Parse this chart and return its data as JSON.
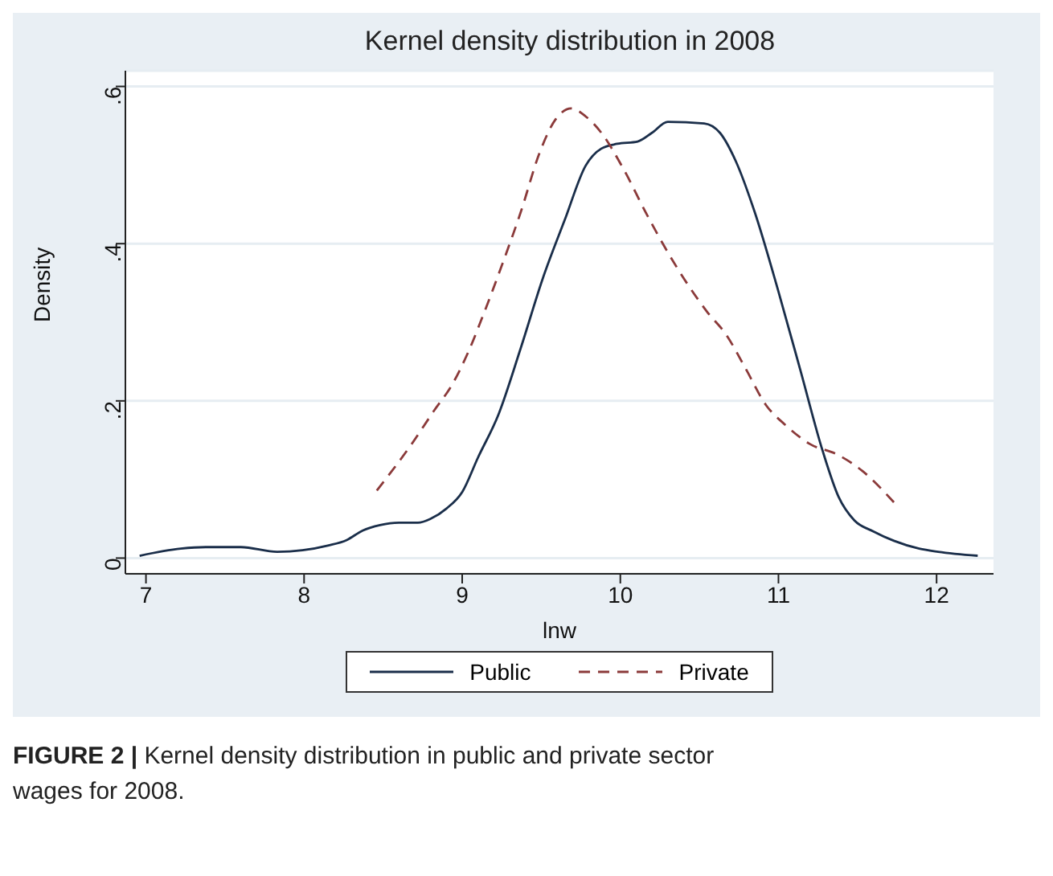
{
  "chart_data": {
    "type": "line",
    "title": "Kernel density distribution in 2008",
    "xlabel": "lnw",
    "ylabel": "Density",
    "xlim": [
      6.87,
      12.36
    ],
    "xticks": [
      7,
      8,
      9,
      10,
      11,
      12
    ],
    "ylim": [
      -0.02,
      0.62
    ],
    "yticks": [
      {
        "value": 0,
        "label": "0"
      },
      {
        "value": 0.2,
        "label": ".2"
      },
      {
        "value": 0.4,
        "label": ".4"
      },
      {
        "value": 0.6,
        "label": ".6"
      }
    ],
    "grid": "y",
    "legend": "bottom",
    "marker": "none",
    "series": [
      {
        "name": "Public",
        "color": "#1a2e4a",
        "line_style": "solid",
        "x": [
          6.96,
          7.22,
          7.38,
          7.6,
          7.83,
          7.99,
          8.15,
          8.27,
          8.37,
          8.48,
          8.6,
          8.72,
          8.8,
          8.9,
          9.0,
          9.1,
          9.23,
          9.37,
          9.51,
          9.65,
          9.78,
          9.88,
          9.98,
          10.11,
          10.2,
          10.3,
          10.53,
          10.63,
          10.73,
          10.85,
          11.0,
          11.14,
          11.28,
          11.38,
          11.48,
          11.6,
          11.73,
          11.89,
          12.01,
          12.26
        ],
        "values": [
          0.003,
          0.012,
          0.014,
          0.014,
          0.008,
          0.01,
          0.016,
          0.023,
          0.035,
          0.042,
          0.045,
          0.045,
          0.05,
          0.063,
          0.084,
          0.128,
          0.183,
          0.267,
          0.356,
          0.431,
          0.499,
          0.521,
          0.527,
          0.53,
          0.541,
          0.555,
          0.553,
          0.541,
          0.505,
          0.44,
          0.339,
          0.238,
          0.136,
          0.078,
          0.048,
          0.034,
          0.022,
          0.012,
          0.008,
          0.003
        ]
      },
      {
        "name": "Private",
        "color": "#8b3a3a",
        "line_style": "dashed",
        "x": [
          8.46,
          8.68,
          8.82,
          8.94,
          9.04,
          9.14,
          9.25,
          9.37,
          9.49,
          9.59,
          9.69,
          9.78,
          9.88,
          10.02,
          10.16,
          10.3,
          10.43,
          10.55,
          10.67,
          10.79,
          10.92,
          11.04,
          11.2,
          11.37,
          11.53,
          11.73
        ],
        "values": [
          0.086,
          0.145,
          0.187,
          0.222,
          0.263,
          0.313,
          0.372,
          0.44,
          0.516,
          0.558,
          0.572,
          0.562,
          0.541,
          0.495,
          0.44,
          0.389,
          0.347,
          0.313,
          0.284,
          0.242,
          0.195,
          0.17,
          0.145,
          0.132,
          0.111,
          0.071
        ]
      }
    ],
    "annotations": [
      "FIGURE 2 | Kernel density distribution in public and private sector wages for 2008."
    ]
  }
}
